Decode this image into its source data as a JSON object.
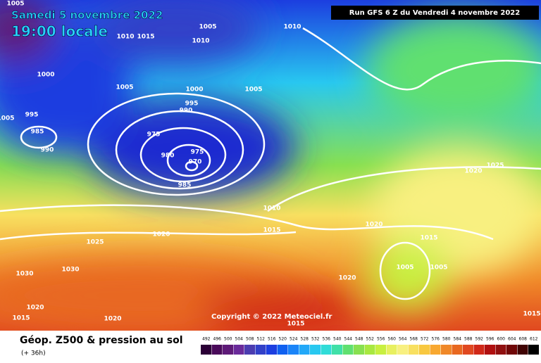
{
  "header": {
    "date": "Samedi 5 novembre 2022",
    "time": "19:00 locale",
    "run": "Run GFS 6 Z du Vendredi 4 novembre 2022"
  },
  "isobar_labels": [
    "1005",
    "1005",
    "1010",
    "1010",
    "1015",
    "1010",
    "1000",
    "1005",
    "1000",
    "1005",
    "995",
    "990",
    "995",
    "1005",
    "985",
    "975",
    "990",
    "980",
    "975",
    "970",
    "985",
    "1020",
    "1025",
    "1010",
    "1015",
    "1020",
    "1015",
    "1020",
    "1025",
    "1005",
    "1005",
    "1030",
    "1030",
    "1020",
    "1020",
    "1015",
    "1020",
    "1015",
    "1015"
  ],
  "copyright": "Copyright © 2022 Meteociel.fr",
  "legend": {
    "title": "Géop. Z500 & pression au sol",
    "subtitle": "(+ 36h)",
    "levels": [
      492,
      496,
      500,
      504,
      508,
      512,
      516,
      520,
      524,
      528,
      532,
      536,
      540,
      544,
      548,
      552,
      556,
      560,
      564,
      568,
      572,
      576,
      580,
      584,
      588,
      592,
      596,
      600,
      604,
      608,
      612
    ],
    "colors": [
      "#2b0036",
      "#4a0a5a",
      "#5e1a78",
      "#6a2a9a",
      "#4b3cb0",
      "#3240c8",
      "#1c3ee0",
      "#1060f0",
      "#1a84f8",
      "#22a8f8",
      "#28c8f0",
      "#30dcd8",
      "#40e0a8",
      "#60e070",
      "#88e050",
      "#a8e840",
      "#c8f040",
      "#e8f060",
      "#f8f080",
      "#f8e060",
      "#f8c840",
      "#f8a830",
      "#f08828",
      "#e86820",
      "#e04820",
      "#d02818",
      "#b01010",
      "#901010",
      "#700808",
      "#400404",
      "#000000"
    ]
  }
}
